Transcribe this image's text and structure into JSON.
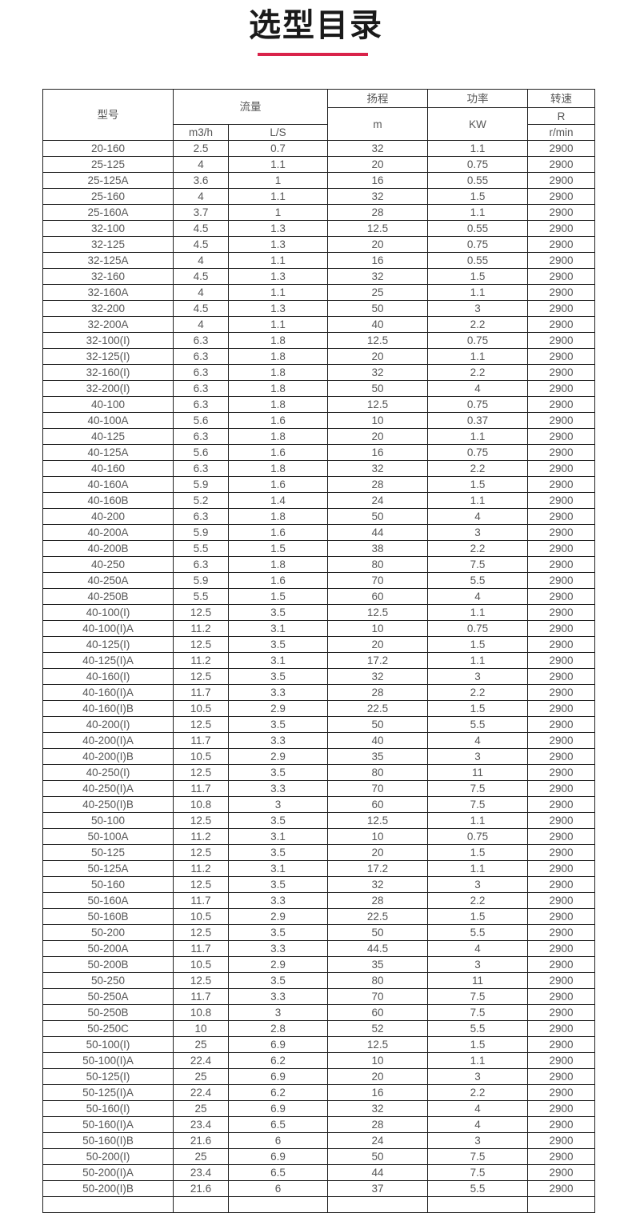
{
  "title": "选型目录",
  "accent_color": "#d9234a",
  "header": {
    "model": "型号",
    "flow": "流量",
    "flow_m3h": "m3/h",
    "flow_ls": "L/S",
    "head": "扬程",
    "head_unit": "m",
    "power": "功率",
    "power_unit": "KW",
    "speed": "转速",
    "speed_r": "R",
    "speed_unit": "r/min"
  },
  "rows": [
    [
      "20-160",
      "2.5",
      "0.7",
      "32",
      "1.1",
      "2900"
    ],
    [
      "25-125",
      "4",
      "1.1",
      "20",
      "0.75",
      "2900"
    ],
    [
      "25-125A",
      "3.6",
      "1",
      "16",
      "0.55",
      "2900"
    ],
    [
      "25-160",
      "4",
      "1.1",
      "32",
      "1.5",
      "2900"
    ],
    [
      "25-160A",
      "3.7",
      "1",
      "28",
      "1.1",
      "2900"
    ],
    [
      "32-100",
      "4.5",
      "1.3",
      "12.5",
      "0.55",
      "2900"
    ],
    [
      "32-125",
      "4.5",
      "1.3",
      "20",
      "0.75",
      "2900"
    ],
    [
      "32-125A",
      "4",
      "1.1",
      "16",
      "0.55",
      "2900"
    ],
    [
      "32-160",
      "4.5",
      "1.3",
      "32",
      "1.5",
      "2900"
    ],
    [
      "32-160A",
      "4",
      "1.1",
      "25",
      "1.1",
      "2900"
    ],
    [
      "32-200",
      "4.5",
      "1.3",
      "50",
      "3",
      "2900"
    ],
    [
      "32-200A",
      "4",
      "1.1",
      "40",
      "2.2",
      "2900"
    ],
    [
      "32-100(I)",
      "6.3",
      "1.8",
      "12.5",
      "0.75",
      "2900"
    ],
    [
      "32-125(I)",
      "6.3",
      "1.8",
      "20",
      "1.1",
      "2900"
    ],
    [
      "32-160(I)",
      "6.3",
      "1.8",
      "32",
      "2.2",
      "2900"
    ],
    [
      "32-200(I)",
      "6.3",
      "1.8",
      "50",
      "4",
      "2900"
    ],
    [
      "40-100",
      "6.3",
      "1.8",
      "12.5",
      "0.75",
      "2900"
    ],
    [
      "40-100A",
      "5.6",
      "1.6",
      "10",
      "0.37",
      "2900"
    ],
    [
      "40-125",
      "6.3",
      "1.8",
      "20",
      "1.1",
      "2900"
    ],
    [
      "40-125A",
      "5.6",
      "1.6",
      "16",
      "0.75",
      "2900"
    ],
    [
      "40-160",
      "6.3",
      "1.8",
      "32",
      "2.2",
      "2900"
    ],
    [
      "40-160A",
      "5.9",
      "1.6",
      "28",
      "1.5",
      "2900"
    ],
    [
      "40-160B",
      "5.2",
      "1.4",
      "24",
      "1.1",
      "2900"
    ],
    [
      "40-200",
      "6.3",
      "1.8",
      "50",
      "4",
      "2900"
    ],
    [
      "40-200A",
      "5.9",
      "1.6",
      "44",
      "3",
      "2900"
    ],
    [
      "40-200B",
      "5.5",
      "1.5",
      "38",
      "2.2",
      "2900"
    ],
    [
      "40-250",
      "6.3",
      "1.8",
      "80",
      "7.5",
      "2900"
    ],
    [
      "40-250A",
      "5.9",
      "1.6",
      "70",
      "5.5",
      "2900"
    ],
    [
      "40-250B",
      "5.5",
      "1.5",
      "60",
      "4",
      "2900"
    ],
    [
      "40-100(I)",
      "12.5",
      "3.5",
      "12.5",
      "1.1",
      "2900"
    ],
    [
      "40-100(I)A",
      "11.2",
      "3.1",
      "10",
      "0.75",
      "2900"
    ],
    [
      "40-125(I)",
      "12.5",
      "3.5",
      "20",
      "1.5",
      "2900"
    ],
    [
      "40-125(I)A",
      "11.2",
      "3.1",
      "17.2",
      "1.1",
      "2900"
    ],
    [
      "40-160(I)",
      "12.5",
      "3.5",
      "32",
      "3",
      "2900"
    ],
    [
      "40-160(I)A",
      "11.7",
      "3.3",
      "28",
      "2.2",
      "2900"
    ],
    [
      "40-160(I)B",
      "10.5",
      "2.9",
      "22.5",
      "1.5",
      "2900"
    ],
    [
      "40-200(I)",
      "12.5",
      "3.5",
      "50",
      "5.5",
      "2900"
    ],
    [
      "40-200(I)A",
      "11.7",
      "3.3",
      "40",
      "4",
      "2900"
    ],
    [
      "40-200(I)B",
      "10.5",
      "2.9",
      "35",
      "3",
      "2900"
    ],
    [
      "40-250(I)",
      "12.5",
      "3.5",
      "80",
      "11",
      "2900"
    ],
    [
      "40-250(I)A",
      "11.7",
      "3.3",
      "70",
      "7.5",
      "2900"
    ],
    [
      "40-250(I)B",
      "10.8",
      "3",
      "60",
      "7.5",
      "2900"
    ],
    [
      "50-100",
      "12.5",
      "3.5",
      "12.5",
      "1.1",
      "2900"
    ],
    [
      "50-100A",
      "11.2",
      "3.1",
      "10",
      "0.75",
      "2900"
    ],
    [
      "50-125",
      "12.5",
      "3.5",
      "20",
      "1.5",
      "2900"
    ],
    [
      "50-125A",
      "11.2",
      "3.1",
      "17.2",
      "1.1",
      "2900"
    ],
    [
      "50-160",
      "12.5",
      "3.5",
      "32",
      "3",
      "2900"
    ],
    [
      "50-160A",
      "11.7",
      "3.3",
      "28",
      "2.2",
      "2900"
    ],
    [
      "50-160B",
      "10.5",
      "2.9",
      "22.5",
      "1.5",
      "2900"
    ],
    [
      "50-200",
      "12.5",
      "3.5",
      "50",
      "5.5",
      "2900"
    ],
    [
      "50-200A",
      "11.7",
      "3.3",
      "44.5",
      "4",
      "2900"
    ],
    [
      "50-200B",
      "10.5",
      "2.9",
      "35",
      "3",
      "2900"
    ],
    [
      "50-250",
      "12.5",
      "3.5",
      "80",
      "11",
      "2900"
    ],
    [
      "50-250A",
      "11.7",
      "3.3",
      "70",
      "7.5",
      "2900"
    ],
    [
      "50-250B",
      "10.8",
      "3",
      "60",
      "7.5",
      "2900"
    ],
    [
      "50-250C",
      "10",
      "2.8",
      "52",
      "5.5",
      "2900"
    ],
    [
      "50-100(I)",
      "25",
      "6.9",
      "12.5",
      "1.5",
      "2900"
    ],
    [
      "50-100(I)A",
      "22.4",
      "6.2",
      "10",
      "1.1",
      "2900"
    ],
    [
      "50-125(I)",
      "25",
      "6.9",
      "20",
      "3",
      "2900"
    ],
    [
      "50-125(I)A",
      "22.4",
      "6.2",
      "16",
      "2.2",
      "2900"
    ],
    [
      "50-160(I)",
      "25",
      "6.9",
      "32",
      "4",
      "2900"
    ],
    [
      "50-160(I)A",
      "23.4",
      "6.5",
      "28",
      "4",
      "2900"
    ],
    [
      "50-160(I)B",
      "21.6",
      "6",
      "24",
      "3",
      "2900"
    ],
    [
      "50-200(I)",
      "25",
      "6.9",
      "50",
      "7.5",
      "2900"
    ],
    [
      "50-200(I)A",
      "23.4",
      "6.5",
      "44",
      "7.5",
      "2900"
    ],
    [
      "50-200(I)B",
      "21.6",
      "6",
      "37",
      "5.5",
      "2900"
    ]
  ]
}
